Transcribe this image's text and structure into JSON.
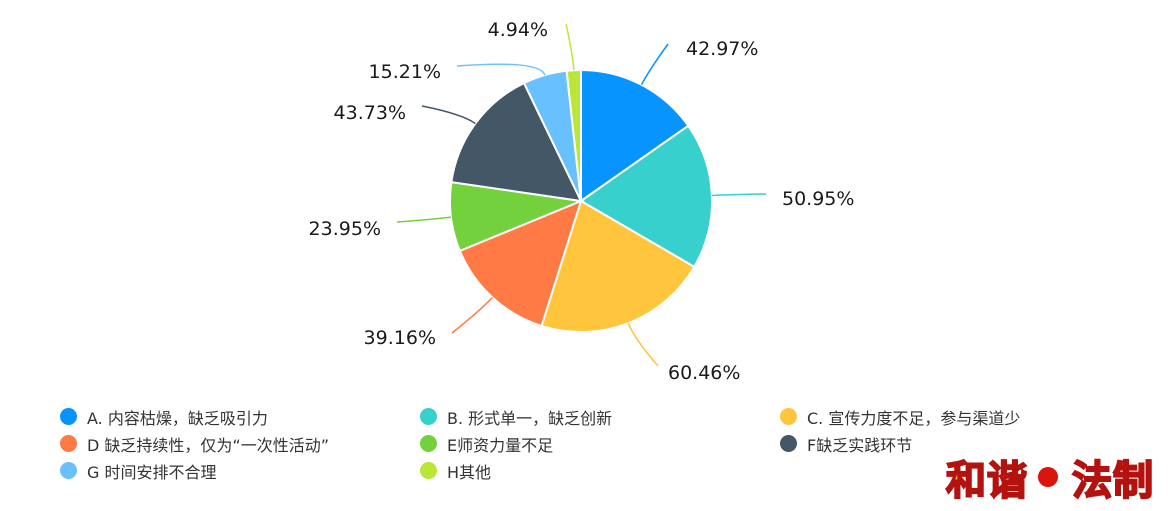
{
  "chart_data": {
    "type": "pie",
    "categories": [
      "A. 内容枯燥，缺乏吸引力",
      "B. 形式单一，缺乏创新",
      "C. 宣传力度不足，参与渠道少",
      "D 缺乏持续性，仅为“一次性活动”",
      "E师资力量不足",
      "F缺乏实践环节",
      "G 时间安排不合理",
      "H其他"
    ],
    "values": [
      42.97,
      50.95,
      60.46,
      39.16,
      23.95,
      43.73,
      15.21,
      4.94
    ],
    "labels": [
      "42.97%",
      "50.95%",
      "60.46%",
      "39.16%",
      "23.95%",
      "43.73%",
      "15.21%",
      "4.94%"
    ],
    "colors": [
      "#0894ff",
      "#37d0cc",
      "#ffc53d",
      "#ff7a45",
      "#73d13d",
      "#435766",
      "#69c0ff",
      "#bae637"
    ],
    "title": "",
    "legend_position": "bottom"
  },
  "watermark": {
    "left_text": "和谐",
    "right_text": "法制"
  }
}
